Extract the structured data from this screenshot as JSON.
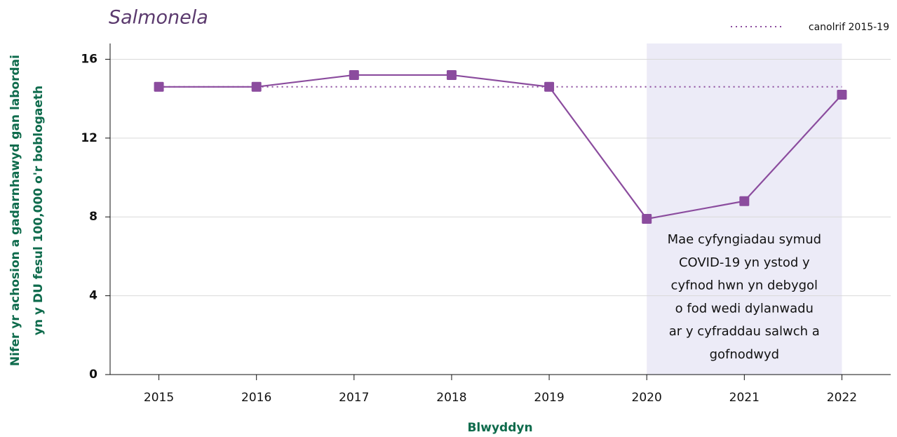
{
  "chart_data": {
    "type": "line",
    "title": "Salmonela",
    "x_label": "Blwyddyn",
    "y_label": [
      "Nifer yr achosion a gadarnhawyd gan labordai",
      "yn y DU fesul 100,000 o'r boblogaeth"
    ],
    "categories": [
      "2015",
      "2016",
      "2017",
      "2018",
      "2019",
      "2020",
      "2021",
      "2022"
    ],
    "series": [
      {
        "color": "#8b4c9e",
        "style": "solid",
        "marker": "square",
        "values": [
          14.6,
          14.6,
          15.2,
          15.2,
          14.6,
          7.9,
          8.8,
          14.2
        ]
      },
      {
        "name": "canolrif 2015-19",
        "color": "#8b4c9e",
        "style": "dotted",
        "values": [
          14.6,
          14.6,
          14.6,
          14.6,
          14.6,
          14.6,
          14.6,
          14.6
        ]
      }
    ],
    "highlight": {
      "from": "2020",
      "to": "2022",
      "color": "#ecebf7"
    },
    "annotation": [
      "Mae cyfyngiadau symud",
      "COVID-19 yn ystod y",
      "cyfnod hwn yn debygol",
      "o fod wedi dylanwadu",
      "ar y cyfraddau salwch a",
      "gofnodwyd"
    ],
    "ylim": [
      0,
      16.8
    ],
    "yticks": [
      0,
      4,
      8,
      12,
      16
    ],
    "grid": true,
    "legend": "top-right"
  }
}
